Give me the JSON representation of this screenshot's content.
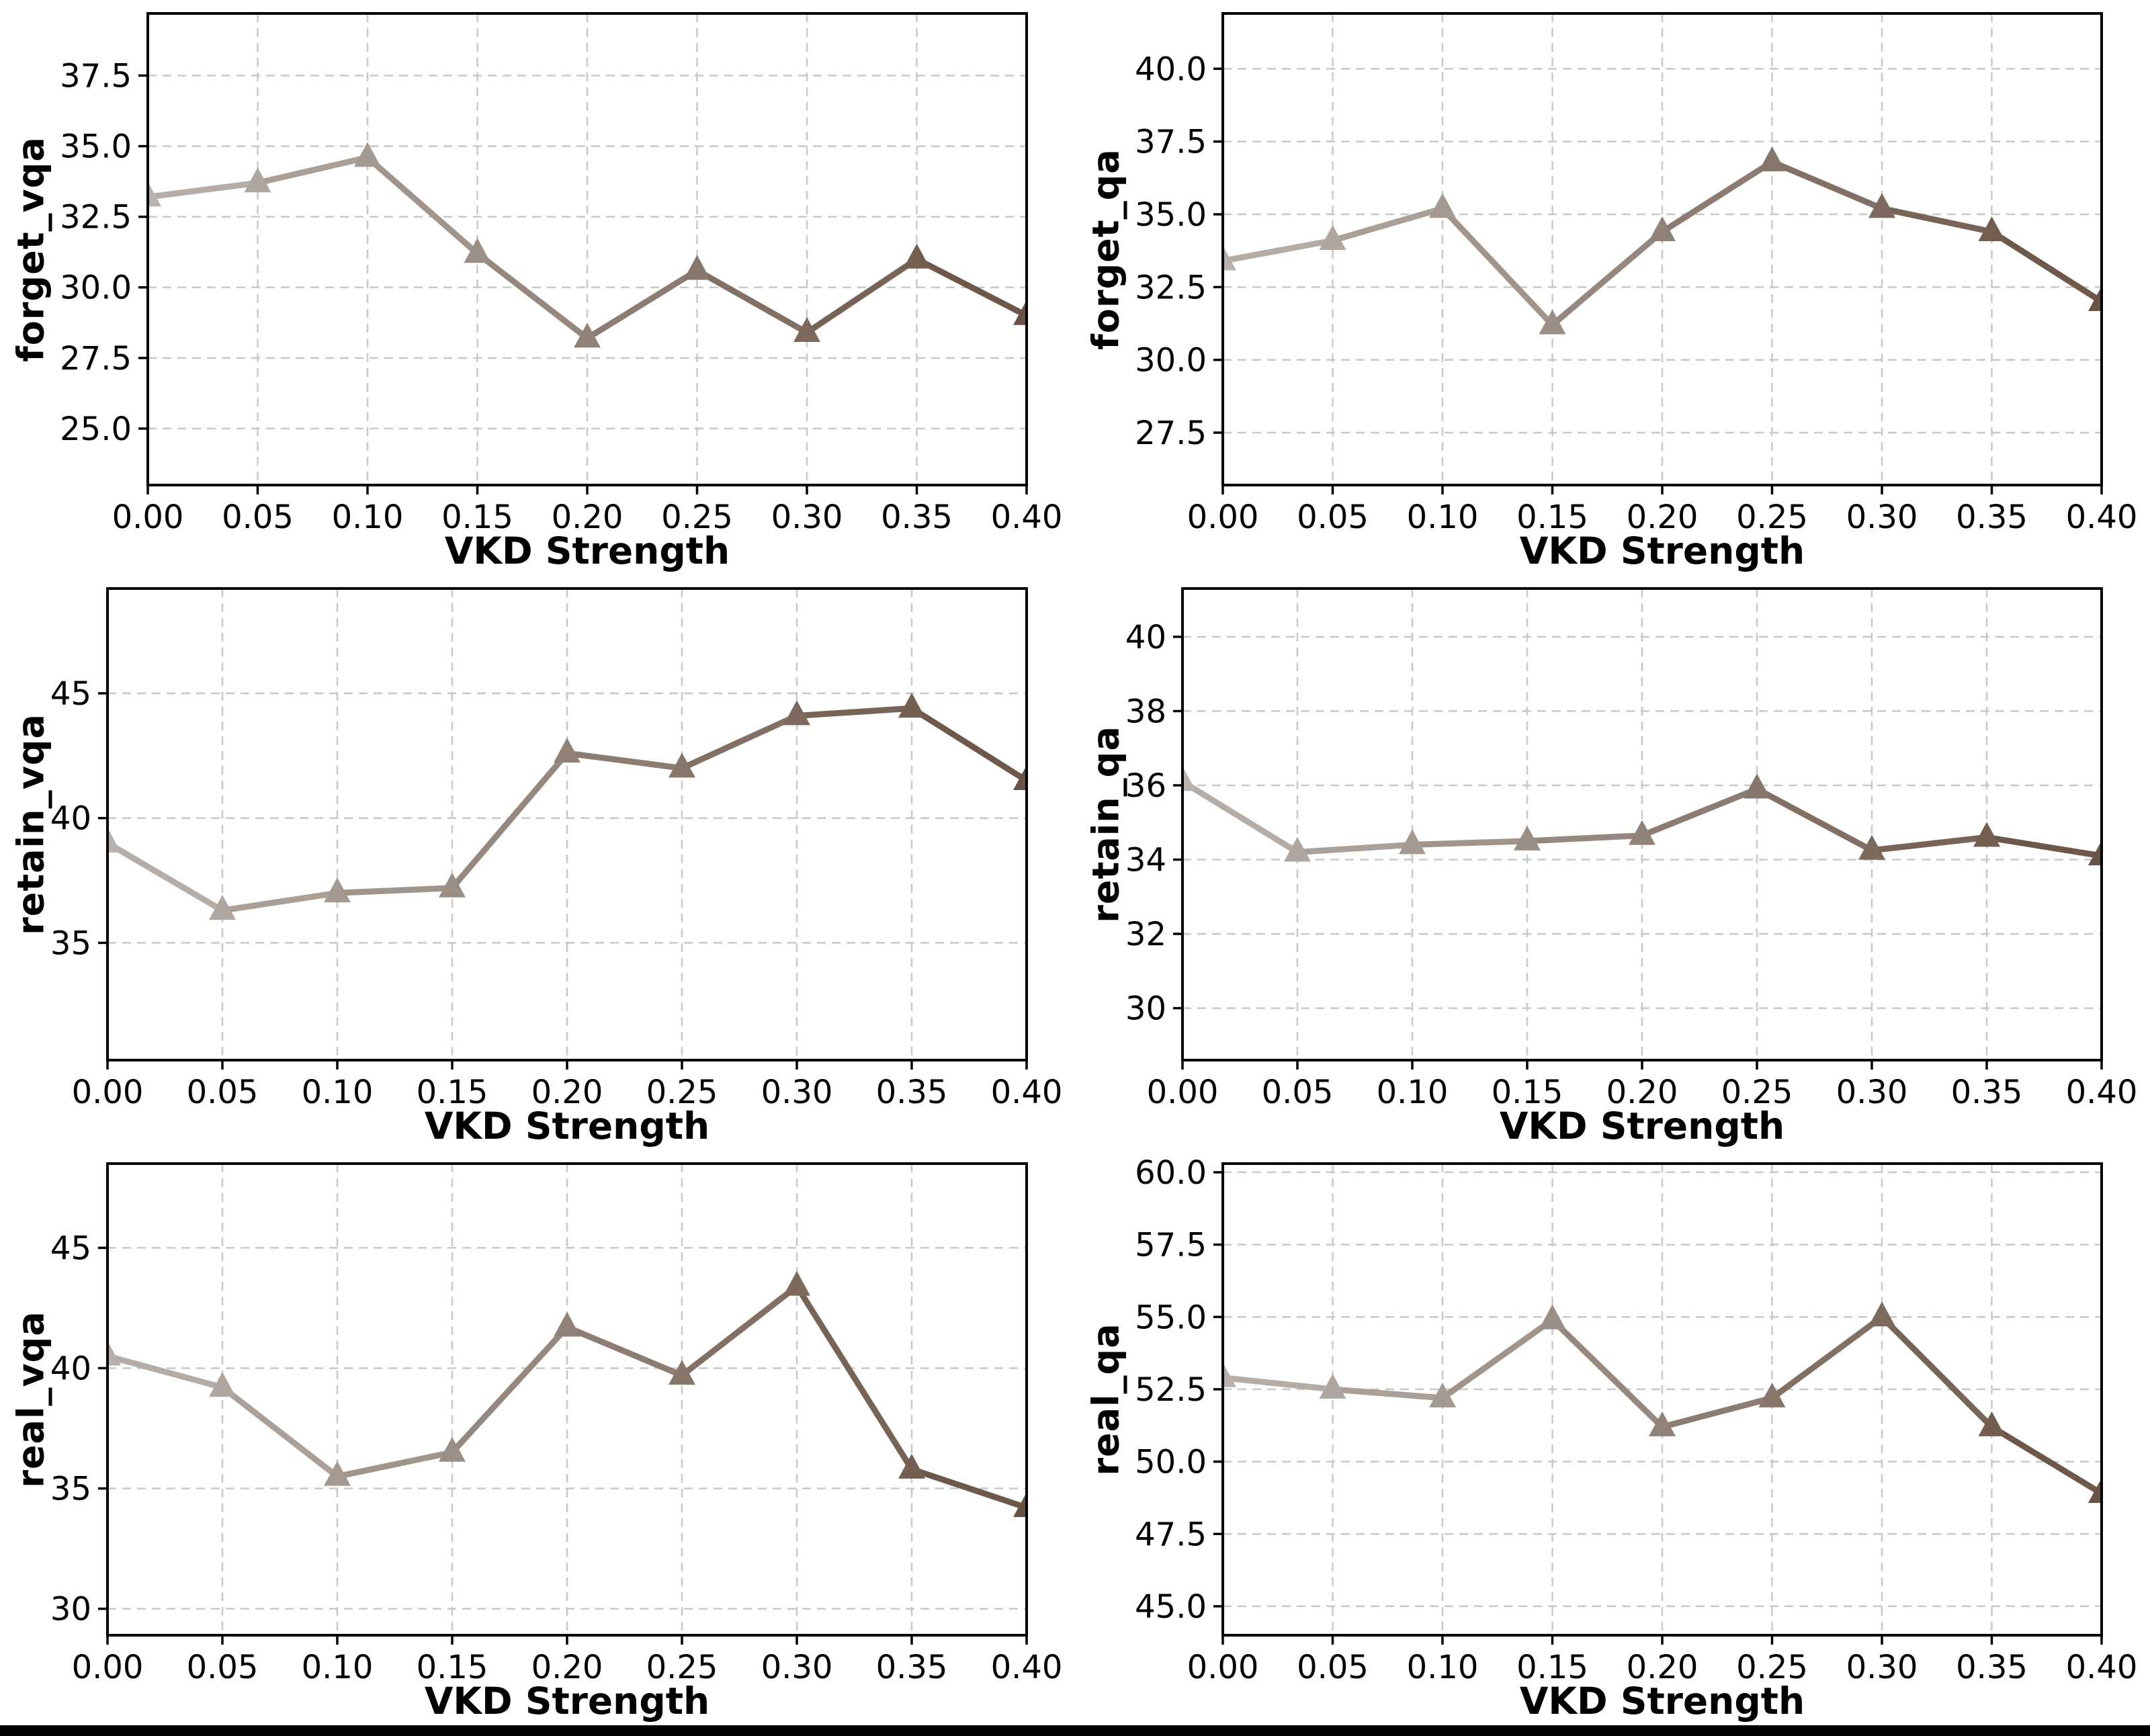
{
  "figure": {
    "xlabel": "VKD Strength",
    "background_color": "#ffffff",
    "bottom_bar_color": "#000000",
    "grid_color": "#c8c8c8",
    "spine_color": "#000000",
    "text_color": "#000000",
    "line_color_start": "#b9b2ac",
    "line_color_end": "#695243",
    "marker": "triangle-up"
  },
  "chart_data": [
    {
      "type": "line",
      "title": "",
      "ylabel": "forget_vqa",
      "xlabel": "VKD Strength",
      "x": [
        0.0,
        0.05,
        0.1,
        0.15,
        0.2,
        0.25,
        0.3,
        0.35,
        0.4
      ],
      "values": [
        33.2,
        33.7,
        34.6,
        31.2,
        28.2,
        30.6,
        28.4,
        31.0,
        29.0
      ],
      "xlim": [
        0.0,
        0.4
      ],
      "ylim": [
        23.0,
        39.7
      ],
      "xticks": [
        "0.00",
        "0.05",
        "0.10",
        "0.15",
        "0.20",
        "0.25",
        "0.30",
        "0.35",
        "0.40"
      ],
      "xtick_vals": [
        0.0,
        0.05,
        0.1,
        0.15,
        0.2,
        0.25,
        0.3,
        0.35,
        0.4
      ],
      "yticks": [
        "25.0",
        "27.5",
        "30.0",
        "32.5",
        "35.0",
        "37.5"
      ],
      "ytick_vals": [
        25.0,
        27.5,
        30.0,
        32.5,
        35.0,
        37.5
      ],
      "grid": true,
      "legend": "none"
    },
    {
      "type": "line",
      "title": "",
      "ylabel": "forget_qa",
      "xlabel": "VKD Strength",
      "x": [
        0.0,
        0.05,
        0.1,
        0.15,
        0.2,
        0.25,
        0.3,
        0.35,
        0.4
      ],
      "values": [
        33.4,
        34.1,
        35.2,
        31.2,
        34.4,
        36.8,
        35.2,
        34.4,
        32.0
      ],
      "xlim": [
        0.0,
        0.4
      ],
      "ylim": [
        25.7,
        41.9
      ],
      "xticks": [
        "0.00",
        "0.05",
        "0.10",
        "0.15",
        "0.20",
        "0.25",
        "0.30",
        "0.35",
        "0.40"
      ],
      "xtick_vals": [
        0.0,
        0.05,
        0.1,
        0.15,
        0.2,
        0.25,
        0.3,
        0.35,
        0.4
      ],
      "yticks": [
        "27.5",
        "30.0",
        "32.5",
        "35.0",
        "37.5",
        "40.0"
      ],
      "ytick_vals": [
        27.5,
        30.0,
        32.5,
        35.0,
        37.5,
        40.0
      ],
      "grid": true,
      "legend": "none"
    },
    {
      "type": "line",
      "title": "",
      "ylabel": "retain_vqa",
      "xlabel": "VKD Strength",
      "x": [
        0.0,
        0.05,
        0.1,
        0.15,
        0.2,
        0.25,
        0.3,
        0.35,
        0.4
      ],
      "values": [
        39.0,
        36.3,
        37.0,
        37.2,
        42.6,
        42.0,
        44.1,
        44.4,
        41.5
      ],
      "xlim": [
        0.0,
        0.4
      ],
      "ylim": [
        30.3,
        49.2
      ],
      "xticks": [
        "0.00",
        "0.05",
        "0.10",
        "0.15",
        "0.20",
        "0.25",
        "0.30",
        "0.35",
        "0.40"
      ],
      "xtick_vals": [
        0.0,
        0.05,
        0.1,
        0.15,
        0.2,
        0.25,
        0.3,
        0.35,
        0.4
      ],
      "yticks": [
        "35",
        "40",
        "45"
      ],
      "ytick_vals": [
        35,
        40,
        45
      ],
      "grid": true,
      "legend": "none"
    },
    {
      "type": "line",
      "title": "",
      "ylabel": "retain_qa",
      "xlabel": "VKD Strength",
      "x": [
        0.0,
        0.05,
        0.1,
        0.15,
        0.2,
        0.25,
        0.3,
        0.35,
        0.4
      ],
      "values": [
        36.1,
        34.2,
        34.4,
        34.5,
        34.65,
        35.9,
        34.25,
        34.6,
        34.1
      ],
      "xlim": [
        0.0,
        0.4
      ],
      "ylim": [
        28.6,
        41.3
      ],
      "xticks": [
        "0.00",
        "0.05",
        "0.10",
        "0.15",
        "0.20",
        "0.25",
        "0.30",
        "0.35",
        "0.40"
      ],
      "xtick_vals": [
        0.0,
        0.05,
        0.1,
        0.15,
        0.2,
        0.25,
        0.3,
        0.35,
        0.4
      ],
      "yticks": [
        "30",
        "32",
        "34",
        "36",
        "38",
        "40"
      ],
      "ytick_vals": [
        30,
        32,
        34,
        36,
        38,
        40
      ],
      "grid": true,
      "legend": "none"
    },
    {
      "type": "line",
      "title": "",
      "ylabel": "real_vqa",
      "xlabel": "VKD Strength",
      "x": [
        0.0,
        0.05,
        0.1,
        0.15,
        0.2,
        0.25,
        0.3,
        0.35,
        0.4
      ],
      "values": [
        40.5,
        39.2,
        35.5,
        36.5,
        41.7,
        39.7,
        43.4,
        35.8,
        34.2
      ],
      "xlim": [
        0.0,
        0.4
      ],
      "ylim": [
        28.9,
        48.5
      ],
      "xticks": [
        "0.00",
        "0.05",
        "0.10",
        "0.15",
        "0.20",
        "0.25",
        "0.30",
        "0.35",
        "0.40"
      ],
      "xtick_vals": [
        0.0,
        0.05,
        0.1,
        0.15,
        0.2,
        0.25,
        0.3,
        0.35,
        0.4
      ],
      "yticks": [
        "30",
        "35",
        "40",
        "45"
      ],
      "ytick_vals": [
        30,
        35,
        40,
        45
      ],
      "grid": true,
      "legend": "none"
    },
    {
      "type": "line",
      "title": "",
      "ylabel": "real_qa",
      "xlabel": "VKD Strength",
      "x": [
        0.0,
        0.05,
        0.1,
        0.15,
        0.2,
        0.25,
        0.3,
        0.35,
        0.4
      ],
      "values": [
        52.9,
        52.5,
        52.2,
        54.9,
        51.2,
        52.2,
        55.0,
        51.2,
        48.9
      ],
      "xlim": [
        0.0,
        0.4
      ],
      "ylim": [
        44.0,
        60.3
      ],
      "xticks": [
        "0.00",
        "0.05",
        "0.10",
        "0.15",
        "0.20",
        "0.25",
        "0.30",
        "0.35",
        "0.40"
      ],
      "xtick_vals": [
        0.0,
        0.05,
        0.1,
        0.15,
        0.2,
        0.25,
        0.3,
        0.35,
        0.4
      ],
      "yticks": [
        "45.0",
        "47.5",
        "50.0",
        "52.5",
        "55.0",
        "57.5",
        "60.0"
      ],
      "ytick_vals": [
        45.0,
        47.5,
        50.0,
        52.5,
        55.0,
        57.5,
        60.0
      ],
      "grid": true,
      "legend": "none"
    }
  ]
}
